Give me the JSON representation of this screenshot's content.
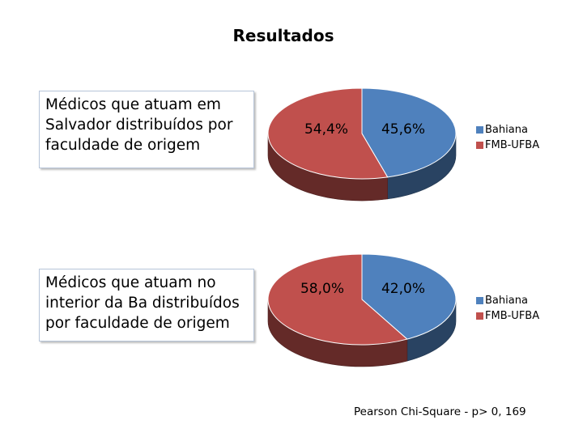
{
  "header": {
    "title": "Resultados"
  },
  "colors": {
    "bahiana": "#4f81bd",
    "fmb_ufba": "#c0504d"
  },
  "chart_data": [
    {
      "type": "pie",
      "description": "Médicos  que atuam em Salvador distribuídos por faculdade de origem",
      "categories": [
        "Bahiana",
        "FMB-UFBA"
      ],
      "values": [
        45.6,
        54.4
      ],
      "data_labels": [
        "45,6%",
        "54,4%"
      ],
      "legend": [
        "Bahiana",
        "FMB-UFBA"
      ],
      "legend_position": "right",
      "style": "3d"
    },
    {
      "type": "pie",
      "description": "Médicos  que atuam no interior da Ba distribuídos por faculdade de origem",
      "categories": [
        "Bahiana",
        "FMB-UFBA"
      ],
      "values": [
        42.0,
        58.0
      ],
      "data_labels": [
        "42,0%",
        "58,0%"
      ],
      "legend": [
        "Bahiana",
        "FMB-UFBA"
      ],
      "legend_position": "right",
      "style": "3d"
    }
  ],
  "footer": {
    "statistic": "Pearson Chi-Square -  p> 0, 169"
  }
}
